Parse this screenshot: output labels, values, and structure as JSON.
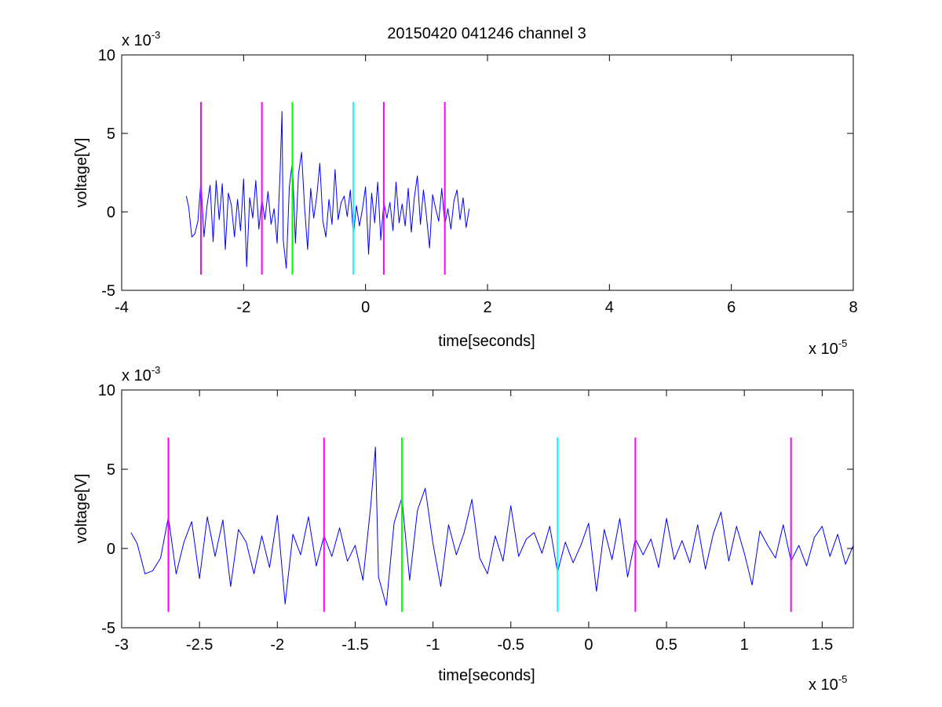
{
  "figure": {
    "title": "20150420 041246 channel 3"
  },
  "chart_data": [
    {
      "type": "line",
      "title": "20150420 041246 channel 3",
      "xlabel": "time[seconds]",
      "ylabel": "voltage[V]",
      "x_exponent_label": "x 10",
      "x_exponent": "-5",
      "y_exponent_label": "x 10",
      "y_exponent": "-3",
      "xlim": [
        -4,
        8
      ],
      "ylim": [
        -5,
        10
      ],
      "xticks": [
        -4,
        -2,
        0,
        2,
        4,
        6,
        8
      ],
      "xtick_labels": [
        "-4",
        "-2",
        "0",
        "2",
        "4",
        "6",
        "8"
      ],
      "yticks": [
        -5,
        0,
        5,
        10
      ],
      "ytick_labels": [
        "-5",
        "0",
        "5",
        "10"
      ],
      "grid": false,
      "signal": {
        "color": "#0000ff",
        "x": [
          -2.94,
          -2.9,
          -2.85,
          -2.8,
          -2.75,
          -2.7,
          -2.65,
          -2.6,
          -2.55,
          -2.5,
          -2.45,
          -2.4,
          -2.35,
          -2.3,
          -2.25,
          -2.2,
          -2.15,
          -2.1,
          -2.05,
          -2.0,
          -1.95,
          -1.9,
          -1.85,
          -1.8,
          -1.75,
          -1.7,
          -1.65,
          -1.6,
          -1.55,
          -1.5,
          -1.45,
          -1.4,
          -1.37,
          -1.35,
          -1.3,
          -1.25,
          -1.2,
          -1.15,
          -1.1,
          -1.05,
          -1.0,
          -0.95,
          -0.9,
          -0.85,
          -0.8,
          -0.75,
          -0.7,
          -0.65,
          -0.6,
          -0.55,
          -0.5,
          -0.45,
          -0.4,
          -0.35,
          -0.3,
          -0.25,
          -0.2,
          -0.15,
          -0.1,
          -0.05,
          0.0,
          0.05,
          0.1,
          0.15,
          0.2,
          0.25,
          0.3,
          0.35,
          0.4,
          0.45,
          0.5,
          0.55,
          0.6,
          0.65,
          0.7,
          0.75,
          0.8,
          0.85,
          0.9,
          0.95,
          1.0,
          1.05,
          1.1,
          1.15,
          1.2,
          1.25,
          1.3,
          1.35,
          1.4,
          1.45,
          1.5,
          1.55,
          1.6,
          1.65,
          1.7
        ],
        "y": [
          1.0,
          0.3,
          -1.6,
          -1.4,
          -0.6,
          2.0,
          -1.6,
          0.4,
          1.7,
          -1.9,
          2.0,
          -0.5,
          1.8,
          -2.4,
          1.2,
          0.4,
          -1.6,
          0.8,
          -1.2,
          2.1,
          -3.5,
          0.9,
          -0.4,
          2.0,
          -1.1,
          0.8,
          -0.5,
          1.3,
          -0.8,
          0.2,
          -2.0,
          2.7,
          6.4,
          -1.8,
          -3.6,
          1.6,
          3.2,
          -2.0,
          2.4,
          3.8,
          0.3,
          -2.4,
          1.5,
          -0.4,
          1.0,
          3.1,
          -0.6,
          -1.6,
          0.8,
          -0.8,
          2.7,
          -0.5,
          0.6,
          1.0,
          -0.3,
          1.4,
          -1.5,
          0.4,
          -0.9,
          0.2,
          1.6,
          -2.7,
          1.2,
          -0.7,
          1.9,
          -1.8,
          0.6,
          -0.4,
          0.6,
          -1.2,
          1.9,
          -0.7,
          0.5,
          -0.9,
          1.5,
          -1.3,
          0.9,
          2.3,
          -0.8,
          1.4,
          -0.3,
          -2.3,
          1.1,
          0.2,
          -0.6,
          1.5,
          -0.8,
          0.2,
          -1.1,
          0.7,
          1.4,
          -0.5,
          0.9,
          -1.0,
          0.2
        ]
      },
      "markers": [
        {
          "x": -2.7,
          "color": "#ff00ff"
        },
        {
          "x": -1.7,
          "color": "#ff00ff"
        },
        {
          "x": -1.2,
          "color": "#00ff00"
        },
        {
          "x": -0.2,
          "color": "#00ffff"
        },
        {
          "x": 0.3,
          "color": "#ff00ff"
        },
        {
          "x": 1.3,
          "color": "#ff00ff"
        }
      ],
      "marker_range": [
        -4,
        7
      ]
    },
    {
      "type": "line",
      "xlabel": "time[seconds]",
      "ylabel": "voltage[V]",
      "x_exponent_label": "x 10",
      "x_exponent": "-5",
      "y_exponent_label": "x 10",
      "y_exponent": "-3",
      "xlim": [
        -3.0,
        1.7
      ],
      "ylim": [
        -5,
        10
      ],
      "xticks": [
        -3,
        -2.5,
        -2,
        -1.5,
        -1,
        -0.5,
        0,
        0.5,
        1,
        1.5
      ],
      "xtick_labels": [
        "-3",
        "-2.5",
        "-2",
        "-1.5",
        "-1",
        "-0.5",
        "0",
        "0.5",
        "1",
        "1.5"
      ],
      "yticks": [
        -5,
        0,
        5,
        10
      ],
      "ytick_labels": [
        "-5",
        "0",
        "5",
        "10"
      ],
      "grid": false,
      "signal_source": "same as upper panel"
    }
  ]
}
